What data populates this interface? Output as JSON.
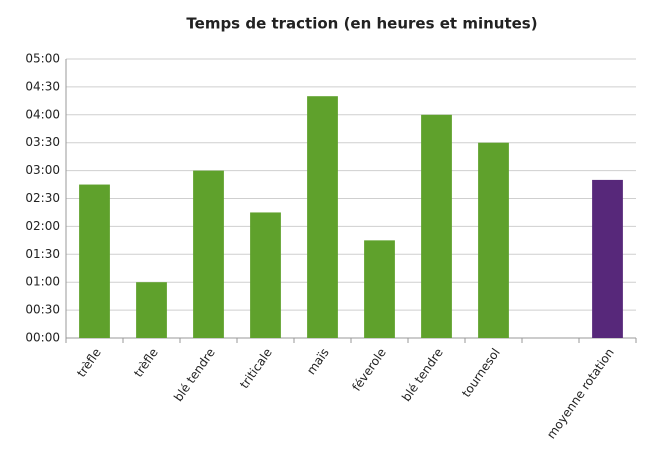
{
  "chart_data": {
    "type": "bar",
    "title": "Temps de traction (en heures et minutes)",
    "categories": [
      "trèfle",
      "trèfle",
      "blé tendre",
      "triticale",
      "maïs",
      "féverole",
      "blé tendre",
      "tournesol",
      null,
      "moyenne rotation"
    ],
    "values": [
      165,
      60,
      180,
      135,
      260,
      105,
      240,
      210,
      null,
      170
    ],
    "colors": [
      "#5fa12c",
      "#5fa12c",
      "#5fa12c",
      "#5fa12c",
      "#5fa12c",
      "#5fa12c",
      "#5fa12c",
      "#5fa12c",
      "#5fa12c",
      "#57287a"
    ],
    "ylim": [
      0,
      300
    ],
    "yticks": [
      {
        "value": 0,
        "label": "00:00"
      },
      {
        "value": 30,
        "label": "00:30"
      },
      {
        "value": 60,
        "label": "01:00"
      },
      {
        "value": 90,
        "label": "01:30"
      },
      {
        "value": 120,
        "label": "02:00"
      },
      {
        "value": 150,
        "label": "02:30"
      },
      {
        "value": 180,
        "label": "03:00"
      },
      {
        "value": 210,
        "label": "03:30"
      },
      {
        "value": 240,
        "label": "04:00"
      },
      {
        "value": 270,
        "label": "04:30"
      },
      {
        "value": 300,
        "label": "05:00"
      }
    ],
    "grid": true
  }
}
